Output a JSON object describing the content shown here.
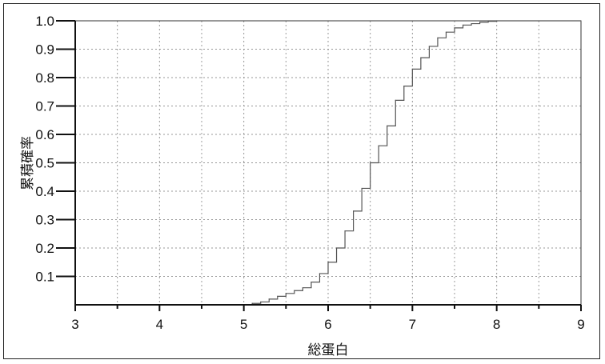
{
  "chart_data": {
    "type": "line",
    "subtype": "empirical-cdf-step",
    "title": "",
    "xlabel": "総蛋白",
    "ylabel": "累積確率",
    "xlim": [
      3,
      9
    ],
    "ylim": [
      0,
      1.0
    ],
    "xticks": [
      "3",
      "4",
      "5",
      "6",
      "7",
      "8",
      "9"
    ],
    "yticks": [
      "0.1",
      "0.2",
      "0.3",
      "0.4",
      "0.5",
      "0.6",
      "0.7",
      "0.8",
      "0.9",
      "1.0"
    ],
    "grid": true,
    "series": [
      {
        "x": [
          5.1,
          5.2,
          5.3,
          5.4,
          5.5,
          5.6,
          5.7,
          5.8,
          5.9,
          6.0,
          6.1,
          6.2,
          6.3,
          6.4,
          6.5,
          6.6,
          6.7,
          6.8,
          6.9,
          7.0,
          7.1,
          7.2,
          7.3,
          7.4,
          7.5,
          7.6,
          7.7,
          7.8,
          7.9,
          8.0,
          9.0
        ],
        "y": [
          0.005,
          0.01,
          0.02,
          0.03,
          0.04,
          0.05,
          0.06,
          0.08,
          0.11,
          0.15,
          0.2,
          0.26,
          0.33,
          0.41,
          0.5,
          0.56,
          0.63,
          0.72,
          0.77,
          0.83,
          0.87,
          0.91,
          0.94,
          0.96,
          0.975,
          0.985,
          0.99,
          0.995,
          0.998,
          1.0,
          1.0
        ]
      }
    ]
  }
}
